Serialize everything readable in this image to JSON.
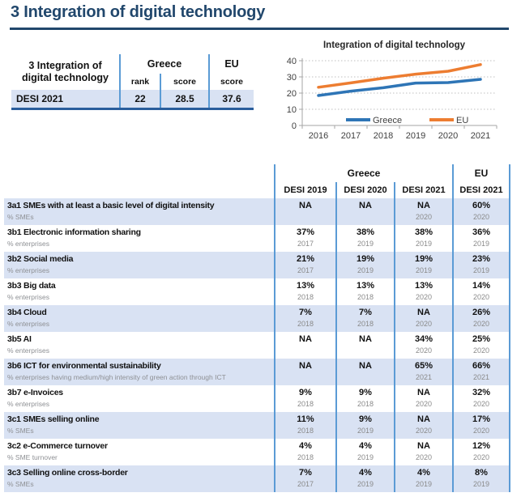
{
  "page": {
    "title": "3 Integration of digital technology"
  },
  "colors": {
    "title_navy": "#21476C",
    "separator_blue": "#5B9BD5",
    "row_shade": "#D9E2F3",
    "greece_line": "#2E75B6",
    "eu_line": "#ED7D31"
  },
  "summary_table": {
    "header": {
      "label_line1": "3 Integration of",
      "label_line2": "digital technology",
      "greece": "Greece",
      "eu": "EU",
      "rank": "rank",
      "score": "score",
      "eu_score": "score"
    },
    "row": {
      "label": "DESI 2021",
      "rank": "22",
      "score": "28.5",
      "eu_score": "37.6"
    }
  },
  "chart_data": {
    "type": "line",
    "title": "Integration of digital technology",
    "x": [
      "2016",
      "2017",
      "2018",
      "2019",
      "2020",
      "2021"
    ],
    "series": [
      {
        "name": "Greece",
        "color": "#2E75B6",
        "values": [
          18.5,
          21.2,
          23.3,
          26.2,
          26.5,
          28.5
        ]
      },
      {
        "name": "EU",
        "color": "#ED7D31",
        "values": [
          23.6,
          26.3,
          29.2,
          31.7,
          33.5,
          37.6
        ]
      }
    ],
    "xlabel": "",
    "ylabel": "",
    "ylim": [
      0,
      40
    ],
    "yticks": [
      0,
      10,
      20,
      30,
      40
    ],
    "grid": true,
    "legend_position": "bottom-inside"
  },
  "main_table": {
    "header": {
      "greece": "Greece",
      "eu": "EU",
      "cols": [
        "DESI 2019",
        "DESI 2020",
        "DESI 2021",
        "DESI 2021"
      ]
    },
    "rows": [
      {
        "name": "3a1 SMEs with at least a basic level of digital intensity",
        "unit": "% SMEs",
        "values": [
          "NA",
          "NA",
          "NA",
          "60%"
        ],
        "years": [
          "",
          "",
          "2020",
          "2020"
        ],
        "shaded": true
      },
      {
        "name": "3b1 Electronic information sharing",
        "unit": "% enterprises",
        "values": [
          "37%",
          "38%",
          "38%",
          "36%"
        ],
        "years": [
          "2017",
          "2019",
          "2019",
          "2019"
        ],
        "shaded": false
      },
      {
        "name": "3b2 Social media",
        "unit": "% enterprises",
        "values": [
          "21%",
          "19%",
          "19%",
          "23%"
        ],
        "years": [
          "2017",
          "2019",
          "2019",
          "2019"
        ],
        "shaded": true
      },
      {
        "name": "3b3 Big data",
        "unit": "% enterprises",
        "values": [
          "13%",
          "13%",
          "13%",
          "14%"
        ],
        "years": [
          "2018",
          "2018",
          "2020",
          "2020"
        ],
        "shaded": false
      },
      {
        "name": "3b4 Cloud",
        "unit": "% enterprises",
        "values": [
          "7%",
          "7%",
          "NA",
          "26%"
        ],
        "years": [
          "2018",
          "2018",
          "2020",
          "2020"
        ],
        "shaded": true
      },
      {
        "name": "3b5 AI",
        "unit": "% enterprises",
        "values": [
          "NA",
          "NA",
          "34%",
          "25%"
        ],
        "years": [
          "",
          "",
          "2020",
          "2020"
        ],
        "shaded": false
      },
      {
        "name": "3b6 ICT for environmental sustainability",
        "unit": "% enterprises having medium/high intensity of green action through ICT",
        "values": [
          "NA",
          "NA",
          "65%",
          "66%"
        ],
        "years": [
          "",
          "",
          "2021",
          "2021"
        ],
        "shaded": true
      },
      {
        "name": "3b7 e-Invoices",
        "unit": "% enterprises",
        "values": [
          "9%",
          "9%",
          "NA",
          "32%"
        ],
        "years": [
          "2018",
          "2018",
          "2020",
          "2020"
        ],
        "shaded": false
      },
      {
        "name": "3c1 SMEs selling online",
        "unit": "% SMEs",
        "values": [
          "11%",
          "9%",
          "NA",
          "17%"
        ],
        "years": [
          "2018",
          "2019",
          "2020",
          "2020"
        ],
        "shaded": true
      },
      {
        "name": "3c2 e-Commerce turnover",
        "unit": "% SME turnover",
        "values": [
          "4%",
          "4%",
          "NA",
          "12%"
        ],
        "years": [
          "2018",
          "2019",
          "2020",
          "2020"
        ],
        "shaded": false
      },
      {
        "name": "3c3 Selling online cross-border",
        "unit": "% SMEs",
        "values": [
          "7%",
          "4%",
          "4%",
          "8%"
        ],
        "years": [
          "2017",
          "2019",
          "2019",
          "2019"
        ],
        "shaded": true
      }
    ]
  }
}
